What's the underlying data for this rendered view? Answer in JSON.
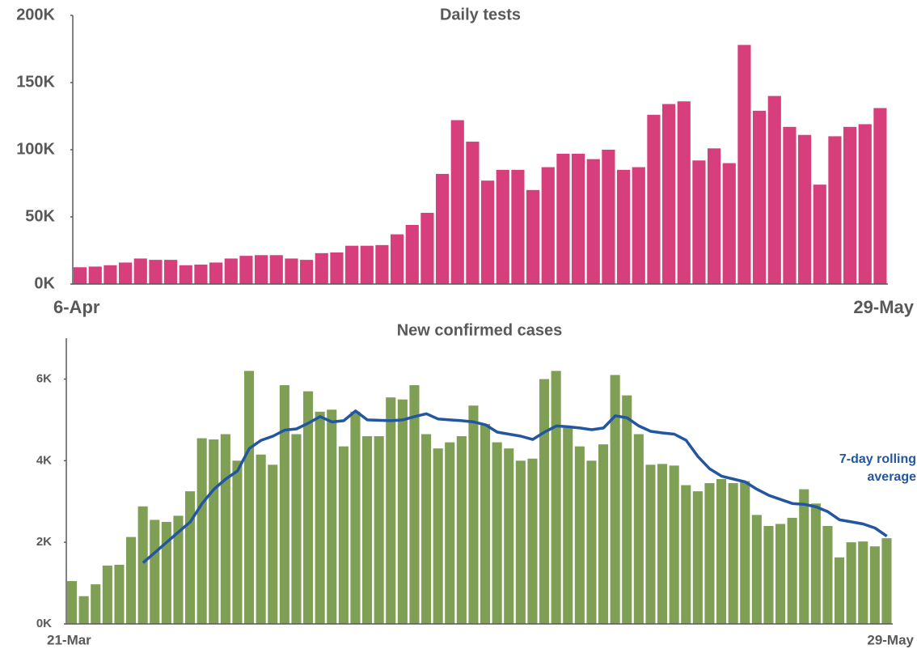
{
  "chart_data": [
    {
      "type": "bar",
      "title": "Daily tests",
      "color": "#d63f7c",
      "categories": [
        "6-Apr",
        null,
        null,
        null,
        null,
        null,
        null,
        null,
        null,
        null,
        null,
        null,
        null,
        null,
        null,
        null,
        null,
        null,
        null,
        null,
        null,
        null,
        null,
        null,
        null,
        null,
        null,
        null,
        null,
        null,
        null,
        null,
        null,
        null,
        null,
        null,
        null,
        null,
        null,
        null,
        null,
        null,
        null,
        null,
        null,
        null,
        null,
        null,
        null,
        null,
        null,
        null,
        null,
        "29-May"
      ],
      "values": [
        12500,
        13000,
        14000,
        16000,
        19000,
        18000,
        18000,
        14000,
        14500,
        16000,
        19000,
        21000,
        21500,
        21500,
        19000,
        18000,
        23000,
        23500,
        28500,
        28500,
        29000,
        37000,
        44000,
        53000,
        82000,
        122000,
        106000,
        77000,
        85000,
        85000,
        70000,
        87000,
        97000,
        97000,
        93000,
        100000,
        85000,
        87000,
        126000,
        134000,
        136000,
        92000,
        101000,
        90000,
        178000,
        129000,
        140000,
        117000,
        111000,
        74000,
        110000,
        117000,
        119000,
        131000
      ],
      "ylim": [
        0,
        200000
      ],
      "yticks": [
        {
          "value": 0,
          "label": "0K"
        },
        {
          "value": 50000,
          "label": "50K"
        },
        {
          "value": 100000,
          "label": "100K"
        },
        {
          "value": 150000,
          "label": "150K"
        },
        {
          "value": 200000,
          "label": "200K"
        }
      ]
    },
    {
      "type": "bar+line",
      "title": "New confirmed cases",
      "categories": [
        "21-Mar",
        null,
        null,
        null,
        null,
        null,
        null,
        null,
        null,
        null,
        null,
        null,
        null,
        null,
        null,
        null,
        null,
        null,
        null,
        null,
        null,
        null,
        null,
        null,
        null,
        null,
        null,
        null,
        null,
        null,
        null,
        null,
        null,
        null,
        null,
        null,
        null,
        null,
        null,
        null,
        null,
        null,
        null,
        null,
        null,
        null,
        null,
        null,
        null,
        null,
        null,
        null,
        null,
        null,
        null,
        null,
        null,
        null,
        null,
        null,
        null,
        null,
        null,
        null,
        null,
        null,
        null,
        null,
        null,
        "29-May"
      ],
      "series": [
        {
          "type": "bar",
          "color": "#7f9f55",
          "values": [
            1050,
            680,
            970,
            1430,
            1450,
            2130,
            2880,
            2550,
            2500,
            2650,
            3250,
            4550,
            4520,
            4650,
            4000,
            6200,
            4150,
            3900,
            5850,
            4650,
            5700,
            5200,
            5250,
            4350,
            5200,
            4600,
            4600,
            5550,
            5500,
            5850,
            4650,
            4300,
            4450,
            4600,
            5350,
            4900,
            4450,
            4300,
            4000,
            4050,
            6000,
            6200,
            4800,
            4350,
            4000,
            4400,
            6100,
            5600,
            4650,
            3900,
            3920,
            3880,
            3400,
            3250,
            3450,
            3550,
            3450,
            3500,
            2670,
            2400,
            2450,
            2600,
            3300,
            2950,
            2400,
            1630,
            2000,
            2020,
            1900,
            2100
          ]
        },
        {
          "type": "line",
          "name_lines": [
            "7-day rolling",
            "average"
          ],
          "color": "#2356a0",
          "values": [
            null,
            null,
            null,
            null,
            null,
            null,
            1500,
            1750,
            2000,
            2250,
            2500,
            2950,
            3300,
            3550,
            3750,
            4300,
            4500,
            4600,
            4750,
            4780,
            4920,
            5080,
            4950,
            4980,
            5220,
            5000,
            4990,
            4980,
            5000,
            5080,
            5150,
            5020,
            5000,
            4980,
            4950,
            4880,
            4700,
            4650,
            4600,
            4520,
            4700,
            4850,
            4830,
            4800,
            4760,
            4800,
            5100,
            5050,
            4850,
            4720,
            4680,
            4650,
            4500,
            4100,
            3800,
            3620,
            3550,
            3480,
            3300,
            3150,
            3050,
            2950,
            2930,
            2870,
            2750,
            2550,
            2500,
            2450,
            2350,
            2150
          ]
        }
      ],
      "ylim": [
        0,
        7000
      ],
      "yticks": [
        {
          "value": 0,
          "label": "0K"
        },
        {
          "value": 2000,
          "label": "2K"
        },
        {
          "value": 4000,
          "label": "4K"
        },
        {
          "value": 6000,
          "label": "6K"
        }
      ]
    }
  ]
}
